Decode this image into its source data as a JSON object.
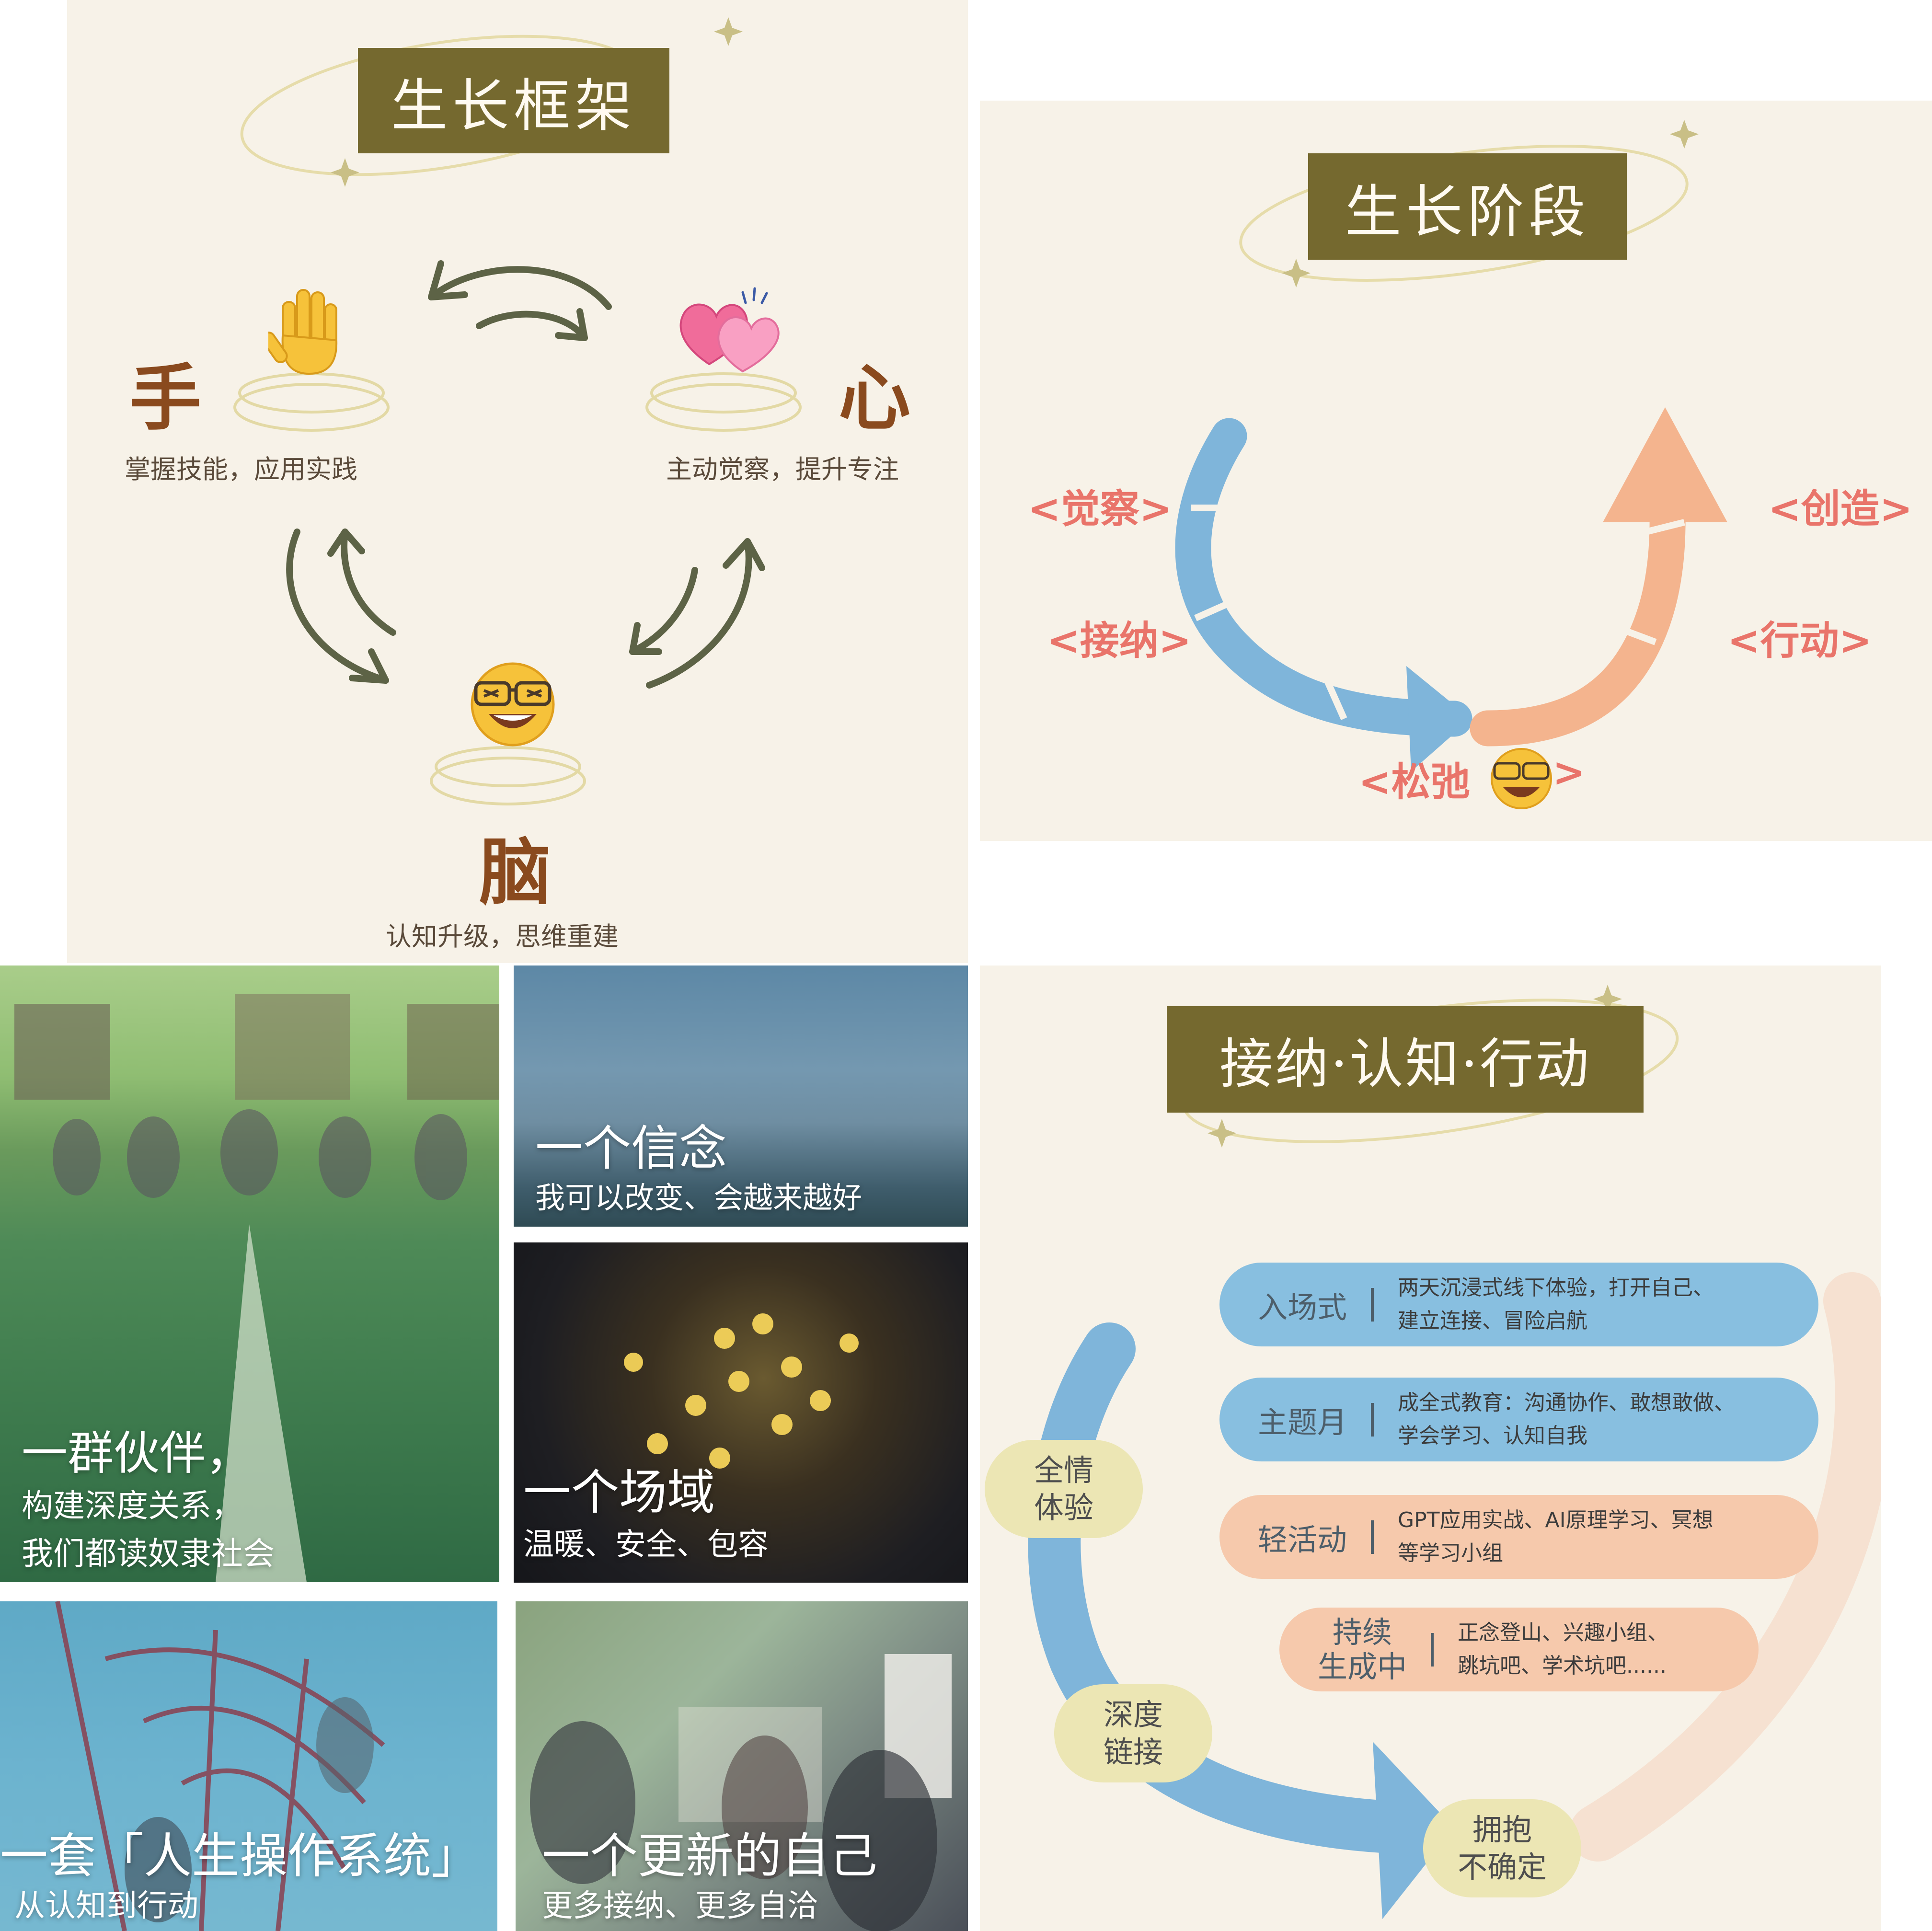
{
  "framework": {
    "title": "生长框架",
    "hand": {
      "label": "手",
      "caption": "掌握技能，应用实践"
    },
    "heart": {
      "label": "心",
      "caption": "主动觉察，提升专注"
    },
    "brain": {
      "label": "脑",
      "caption": "认知升级，思维重建"
    }
  },
  "stages": {
    "title": "生长阶段",
    "items": [
      "<觉察>",
      "<接纳>",
      "<松弛",
      ">",
      "<创造>",
      "<行动>"
    ]
  },
  "photos": {
    "partners": {
      "title": "一群伙伴，",
      "line1": "构建深度关系，",
      "line2": "我们都读奴隶社会"
    },
    "belief": {
      "title": "一个信念",
      "subtitle": "我可以改变、会越来越好"
    },
    "field": {
      "title": "一个场域",
      "subtitle": "温暖、安全、包容"
    },
    "os": {
      "title": "一套「人生操作系统」",
      "subtitle": "从认知到行动"
    },
    "renewed": {
      "title": "一个更新的自己",
      "subtitle": "更多接纳、更多自洽"
    }
  },
  "journey": {
    "title": "接纳·认知·行动",
    "rows": [
      {
        "label": "入场式",
        "line1": "两天沉浸式线下体验，打开自己、",
        "line2": "建立连接、冒险启航"
      },
      {
        "label": "主题月",
        "line1": "成全式教育：沟通协作、敢想敢做、",
        "line2": "学会学习、认知自我"
      },
      {
        "label": "轻活动",
        "line1": "GPT应用实战、AI原理学习、冥想",
        "line2": "等学习小组"
      },
      {
        "label1": "持续",
        "label2": "生成中",
        "line1": "正念登山、兴趣小组、",
        "line2": "跳坑吧、学术坑吧......"
      }
    ],
    "bubbles": [
      {
        "l1": "全情",
        "l2": "体验"
      },
      {
        "l1": "深度",
        "l2": "链接"
      },
      {
        "l1": "拥抱",
        "l2": "不确定"
      }
    ]
  },
  "colors": {
    "title_bg": "#75692f",
    "panel_bg": "#f7f2e8",
    "arrow_green": "#5d6346",
    "blue": "#7fb5da",
    "peach": "#f4b48e",
    "stage_text": "#e9746a"
  }
}
